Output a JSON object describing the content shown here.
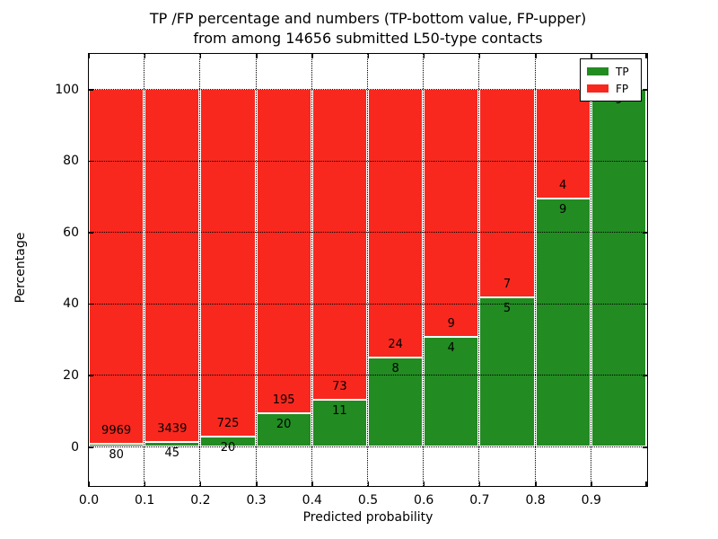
{
  "figure": {
    "title_line1": "TP /FP percentage and numbers (TP-bottom value, FP-upper)",
    "title_line2": "from among 14656 submitted L50-type contacts"
  },
  "chart_data": {
    "type": "bar",
    "subtype": "stacked-100-percent",
    "title": "TP /FP percentage and numbers (TP-bottom value, FP-upper) from among 14656 submitted L50-type contacts",
    "xlabel": "Predicted probability",
    "ylabel": "Percentage",
    "total_contacts": 14656,
    "x_bin_edges": [
      0.0,
      0.1,
      0.2,
      0.3,
      0.4,
      0.5,
      0.6,
      0.7,
      0.8,
      0.9,
      1.0
    ],
    "xtick_labels": [
      "0.0",
      "0.1",
      "0.2",
      "0.3",
      "0.4",
      "0.5",
      "0.6",
      "0.7",
      "0.8",
      "0.9"
    ],
    "ytick_values": [
      0,
      20,
      40,
      60,
      80,
      100
    ],
    "ytick_labels": [
      "0",
      "20",
      "40",
      "60",
      "80",
      "100"
    ],
    "xlim": [
      0.0,
      1.0
    ],
    "ylim": [
      -11,
      110
    ],
    "grid": "dotted",
    "series": [
      {
        "name": "TP",
        "color": "#228B22",
        "counts": [
          80,
          45,
          20,
          20,
          11,
          8,
          4,
          5,
          9,
          9
        ]
      },
      {
        "name": "FP",
        "color": "#F8281E",
        "counts": [
          9969,
          3439,
          725,
          195,
          73,
          24,
          9,
          7,
          4,
          0
        ]
      }
    ],
    "bar_value_labels": [
      {
        "tp": "80",
        "fp": "9969"
      },
      {
        "tp": "45",
        "fp": "3439"
      },
      {
        "tp": "20",
        "fp": "725"
      },
      {
        "tp": "20",
        "fp": "195"
      },
      {
        "tp": "11",
        "fp": "73"
      },
      {
        "tp": "8",
        "fp": "24"
      },
      {
        "tp": "4",
        "fp": "9"
      },
      {
        "tp": "5",
        "fp": "7"
      },
      {
        "tp": "9",
        "fp": "4"
      },
      {
        "tp": "9",
        "fp": ""
      }
    ],
    "legend": {
      "position": "upper-right",
      "entries": [
        {
          "label": "TP",
          "color": "#228B22"
        },
        {
          "label": "FP",
          "color": "#F8281E"
        }
      ]
    }
  }
}
